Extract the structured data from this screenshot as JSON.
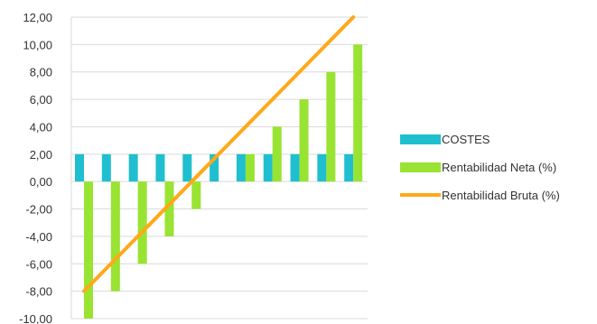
{
  "chart_data": {
    "type": "bar",
    "title": "",
    "xlabel": "",
    "ylabel": "",
    "ylim": [
      -10,
      12
    ],
    "y_ticks": [
      "12,00",
      "10,00",
      "8,00",
      "6,00",
      "4,00",
      "2,00",
      "0,00",
      "-2,00",
      "-4,00",
      "-6,00",
      "-8,00",
      "-10,00"
    ],
    "grid": true,
    "legend_position": "right",
    "categories": [
      "",
      "",
      "",
      "",
      "",
      "",
      "",
      "",
      "",
      "",
      ""
    ],
    "series": [
      {
        "name": "COSTES",
        "type": "bar",
        "color": "#1fbfcf",
        "values": [
          2,
          2,
          2,
          2,
          2,
          2,
          2,
          2,
          2,
          2,
          2
        ]
      },
      {
        "name": "Rentabilidad Neta (%)",
        "type": "bar",
        "color": "#99e332",
        "values": [
          -10,
          -8,
          -6,
          -4,
          -2,
          0,
          2,
          4,
          6,
          8,
          10
        ]
      },
      {
        "name": "Rentabilidad Bruta (%)",
        "type": "line",
        "color": "#ffa81a",
        "values": [
          -8,
          -6,
          -4,
          -2,
          0,
          2,
          4,
          6,
          8,
          10,
          12
        ]
      }
    ]
  }
}
